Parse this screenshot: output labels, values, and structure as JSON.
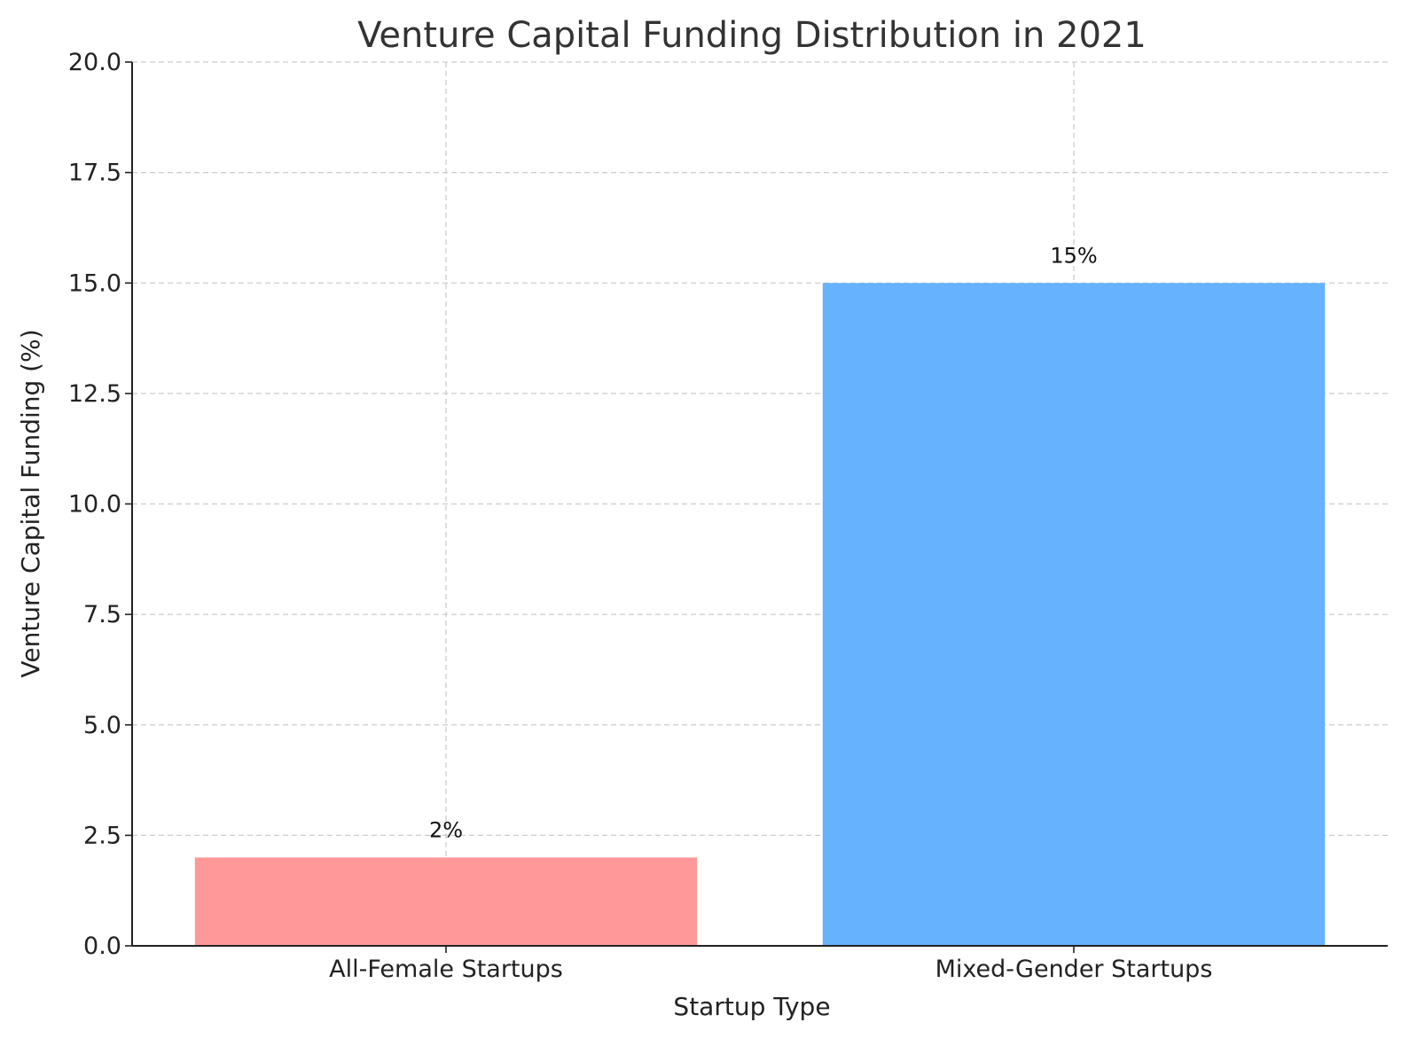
{
  "chart_data": {
    "type": "bar",
    "title": "Venture Capital Funding Distribution in 2021",
    "xlabel": "Startup Type",
    "ylabel": "Venture Capital Funding (%)",
    "categories": [
      "All-Female Startups",
      "Mixed-Gender Startups"
    ],
    "values": [
      2,
      15
    ],
    "data_labels": [
      "2%",
      "15%"
    ],
    "colors": [
      "#ff9999",
      "#66b2ff"
    ],
    "ylim": [
      0,
      20
    ],
    "yticks": [
      0,
      2.5,
      5,
      7.5,
      10,
      12.5,
      15,
      17.5,
      20
    ],
    "ytick_labels": [
      "0.0",
      "2.5",
      "5.0",
      "7.5",
      "10.0",
      "12.5",
      "15.0",
      "17.5",
      "20.0"
    ],
    "grid": true
  }
}
